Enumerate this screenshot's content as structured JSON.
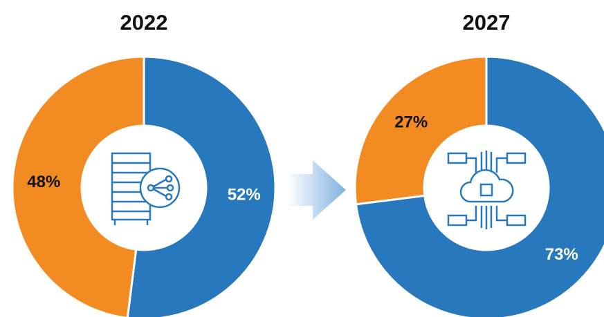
{
  "chart_data": [
    {
      "type": "donut",
      "title": "2022",
      "values": [
        52,
        48
      ],
      "value_labels": [
        "52%",
        "48%"
      ],
      "colors": [
        "#2878be",
        "#f28c22"
      ]
    },
    {
      "type": "donut",
      "title": "2027",
      "values": [
        73,
        27
      ],
      "value_labels": [
        "73%",
        "27%"
      ],
      "colors": [
        "#2878be",
        "#f28c22"
      ]
    }
  ]
}
